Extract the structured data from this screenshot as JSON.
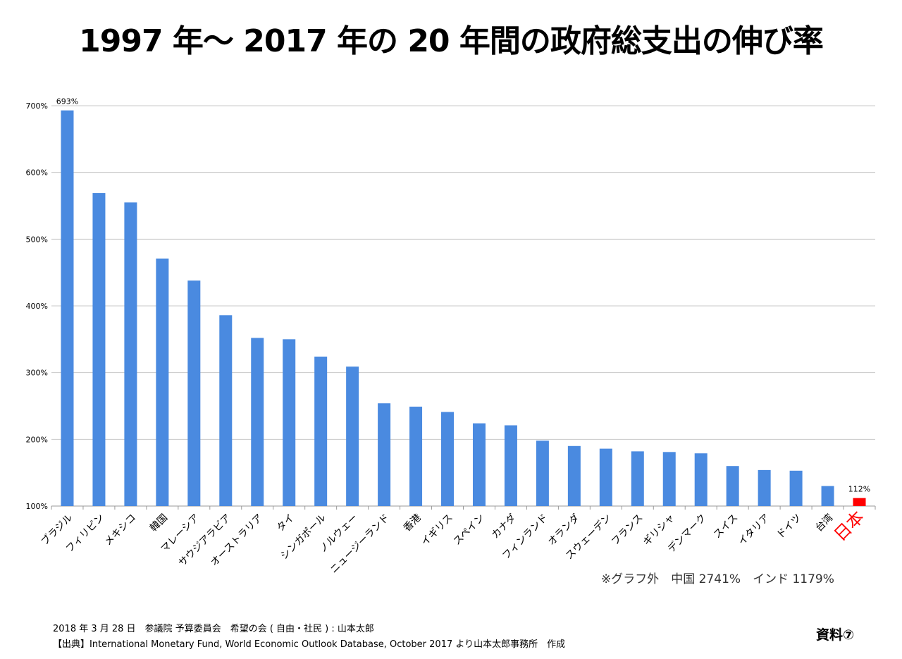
{
  "chart_data": {
    "type": "bar",
    "title": "1997 年〜 2017 年の 20 年間の政府総支出の伸び率",
    "xlabel": "",
    "ylabel": "",
    "ylim": [
      100,
      700
    ],
    "yticks": [
      100,
      200,
      300,
      400,
      500,
      600,
      700
    ],
    "ytick_labels": [
      "100%",
      "200%",
      "300%",
      "400%",
      "500%",
      "600%",
      "700%"
    ],
    "grid": true,
    "categories": [
      "ブラジル",
      "フィリピン",
      "メキシコ",
      "韓国",
      "マレーシア",
      "サウジアラビア",
      "オーストラリア",
      "タイ",
      "シンガポール",
      "ノルウェー",
      "ニュージーランド",
      "香港",
      "イギリス",
      "スペイン",
      "カナダ",
      "フィンランド",
      "オランダ",
      "スウェーデン",
      "フランス",
      "ギリシャ",
      "デンマーク",
      "スイス",
      "イタリア",
      "ドイツ",
      "台湾",
      "日本"
    ],
    "values": [
      693,
      569,
      555,
      471,
      438,
      386,
      352,
      350,
      324,
      309,
      254,
      249,
      241,
      224,
      221,
      198,
      190,
      186,
      182,
      181,
      179,
      160,
      154,
      153,
      130,
      112
    ],
    "bar_color": "#4a8ae0",
    "highlight_color": "#ff0000",
    "highlight_category": "日本",
    "data_labels": [
      {
        "category": "ブラジル",
        "text": "693%"
      },
      {
        "category": "日本",
        "text": "112%"
      }
    ],
    "note": "※グラフ外　中国 2741%　インド 1179%"
  },
  "footer": {
    "line1": "2018 年 3 月 28 日　参議院 予算委員会　希望の会 ( 自由・社民 ) : 山本太郎",
    "line2": "【出典】International Monetary Fund, World Economic Outlook Database, October 2017 より山本太郎事務所　作成"
  },
  "doc_label": "資料⑦"
}
